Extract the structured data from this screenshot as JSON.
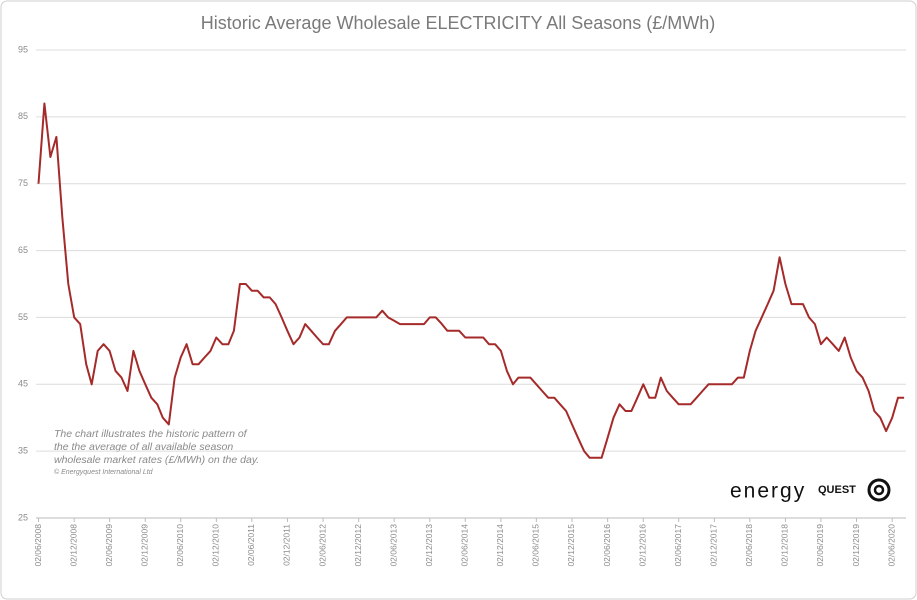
{
  "chart_data": {
    "type": "line",
    "title": "Historic Average Wholesale ELECTRICITY All Seasons (£/MWh)",
    "annotation": "The chart illustrates the historic pattern of the the average of all available season wholesale market rates (£/MWh) on the day.",
    "footnote": "© Energyquest International Ltd",
    "logo": {
      "word": "energy",
      "brand": "QUEST"
    },
    "grid": true,
    "ylim": [
      25,
      95
    ],
    "yticks": [
      25,
      35,
      45,
      55,
      65,
      75,
      85,
      95
    ],
    "xlim": [
      "2008-05-20",
      "2020-08-12"
    ],
    "xticks": [
      {
        "value": "2008-06-02",
        "label": "02/06/2008"
      },
      {
        "value": "2008-12-02",
        "label": "02/12/2008"
      },
      {
        "value": "2009-06-02",
        "label": "02/06/2009"
      },
      {
        "value": "2009-12-02",
        "label": "02/12/2009"
      },
      {
        "value": "2010-06-02",
        "label": "02/06/2010"
      },
      {
        "value": "2010-12-02",
        "label": "02/12/2010"
      },
      {
        "value": "2011-06-02",
        "label": "02/06/2011"
      },
      {
        "value": "2011-12-02",
        "label": "02/12/2011"
      },
      {
        "value": "2012-06-02",
        "label": "02/06/2012"
      },
      {
        "value": "2012-12-02",
        "label": "02/12/2012"
      },
      {
        "value": "2013-06-02",
        "label": "02/06/2013"
      },
      {
        "value": "2013-12-02",
        "label": "02/12/2013"
      },
      {
        "value": "2014-06-02",
        "label": "02/06/2014"
      },
      {
        "value": "2014-12-02",
        "label": "02/12/2014"
      },
      {
        "value": "2015-06-02",
        "label": "02/06/2015"
      },
      {
        "value": "2015-12-02",
        "label": "02/12/2015"
      },
      {
        "value": "2016-06-02",
        "label": "02/06/2016"
      },
      {
        "value": "2016-12-02",
        "label": "02/12/2016"
      },
      {
        "value": "2017-06-02",
        "label": "02/06/2017"
      },
      {
        "value": "2017-12-02",
        "label": "02/12/2017"
      },
      {
        "value": "2018-06-02",
        "label": "02/06/2018"
      },
      {
        "value": "2018-12-02",
        "label": "02/12/2018"
      },
      {
        "value": "2019-06-02",
        "label": "02/06/2019"
      },
      {
        "value": "2019-12-02",
        "label": "02/12/2019"
      },
      {
        "value": "2020-06-02",
        "label": "02/06/2020"
      }
    ],
    "color": "#a52a2a",
    "x": [
      "2008-06-02",
      "2008-07-02",
      "2008-08-02",
      "2008-09-02",
      "2008-10-02",
      "2008-11-02",
      "2008-12-02",
      "2009-01-02",
      "2009-02-02",
      "2009-03-02",
      "2009-04-02",
      "2009-05-02",
      "2009-06-02",
      "2009-07-02",
      "2009-08-02",
      "2009-09-02",
      "2009-10-02",
      "2009-11-02",
      "2009-12-02",
      "2010-01-02",
      "2010-02-02",
      "2010-03-02",
      "2010-04-02",
      "2010-05-02",
      "2010-06-02",
      "2010-07-02",
      "2010-08-02",
      "2010-09-02",
      "2010-10-02",
      "2010-11-02",
      "2010-12-02",
      "2011-01-02",
      "2011-02-02",
      "2011-03-02",
      "2011-04-02",
      "2011-05-02",
      "2011-06-02",
      "2011-07-02",
      "2011-08-02",
      "2011-09-02",
      "2011-10-02",
      "2011-11-02",
      "2011-12-02",
      "2012-01-02",
      "2012-02-02",
      "2012-03-02",
      "2012-04-02",
      "2012-05-02",
      "2012-06-02",
      "2012-07-02",
      "2012-08-02",
      "2012-09-02",
      "2012-10-02",
      "2012-11-02",
      "2012-12-02",
      "2013-01-02",
      "2013-02-02",
      "2013-03-02",
      "2013-04-02",
      "2013-05-02",
      "2013-06-02",
      "2013-07-02",
      "2013-08-02",
      "2013-09-02",
      "2013-10-02",
      "2013-11-02",
      "2013-12-02",
      "2014-01-02",
      "2014-02-02",
      "2014-03-02",
      "2014-04-02",
      "2014-05-02",
      "2014-06-02",
      "2014-07-02",
      "2014-08-02",
      "2014-09-02",
      "2014-10-02",
      "2014-11-02",
      "2014-12-02",
      "2015-01-02",
      "2015-02-02",
      "2015-03-02",
      "2015-04-02",
      "2015-05-02",
      "2015-06-02",
      "2015-07-02",
      "2015-08-02",
      "2015-09-02",
      "2015-10-02",
      "2015-11-02",
      "2015-12-02",
      "2016-01-02",
      "2016-02-02",
      "2016-03-02",
      "2016-04-02",
      "2016-05-02",
      "2016-06-02",
      "2016-07-02",
      "2016-08-02",
      "2016-09-02",
      "2016-10-02",
      "2016-11-02",
      "2016-12-02",
      "2017-01-02",
      "2017-02-02",
      "2017-03-02",
      "2017-04-02",
      "2017-05-02",
      "2017-06-02",
      "2017-07-02",
      "2017-08-02",
      "2017-09-02",
      "2017-10-02",
      "2017-11-02",
      "2017-12-02",
      "2018-01-02",
      "2018-02-02",
      "2018-03-02",
      "2018-04-02",
      "2018-05-02",
      "2018-06-02",
      "2018-07-02",
      "2018-08-02",
      "2018-09-02",
      "2018-10-02",
      "2018-11-02",
      "2018-12-02",
      "2019-01-02",
      "2019-02-02",
      "2019-03-02",
      "2019-04-02",
      "2019-05-02",
      "2019-06-02",
      "2019-07-02",
      "2019-08-02",
      "2019-09-02",
      "2019-10-02",
      "2019-11-02",
      "2019-12-02",
      "2020-01-02",
      "2020-02-02",
      "2020-03-02",
      "2020-04-02",
      "2020-05-02",
      "2020-06-02",
      "2020-07-02",
      "2020-08-02"
    ],
    "values": [
      75,
      87,
      79,
      82,
      70,
      60,
      55,
      54,
      48,
      45,
      50,
      51,
      50,
      47,
      46,
      44,
      50,
      47,
      45,
      43,
      42,
      40,
      39,
      46,
      49,
      51,
      48,
      48,
      49,
      50,
      52,
      51,
      51,
      53,
      60,
      60,
      59,
      59,
      58,
      58,
      57,
      55,
      53,
      51,
      52,
      54,
      53,
      52,
      51,
      51,
      53,
      54,
      55,
      55,
      55,
      55,
      55,
      55,
      56,
      55,
      54.5,
      54,
      54,
      54,
      54,
      54,
      55,
      55,
      54,
      53,
      53,
      53,
      52,
      52,
      52,
      52,
      51,
      51,
      50,
      47,
      45,
      46,
      46,
      46,
      45,
      44,
      43,
      43,
      42,
      41,
      39,
      37,
      35,
      34,
      34,
      34,
      37,
      40,
      42,
      41,
      41,
      43,
      45,
      43,
      43,
      46,
      44,
      43,
      42,
      42,
      42,
      43,
      44,
      45,
      45,
      45,
      45,
      45,
      46,
      46,
      50,
      53,
      55,
      57,
      59,
      64,
      60,
      57,
      57,
      57,
      55,
      54,
      51,
      52,
      51,
      50,
      52,
      49,
      47,
      46,
      44,
      41,
      40,
      38,
      40,
      43,
      43
    ]
  }
}
